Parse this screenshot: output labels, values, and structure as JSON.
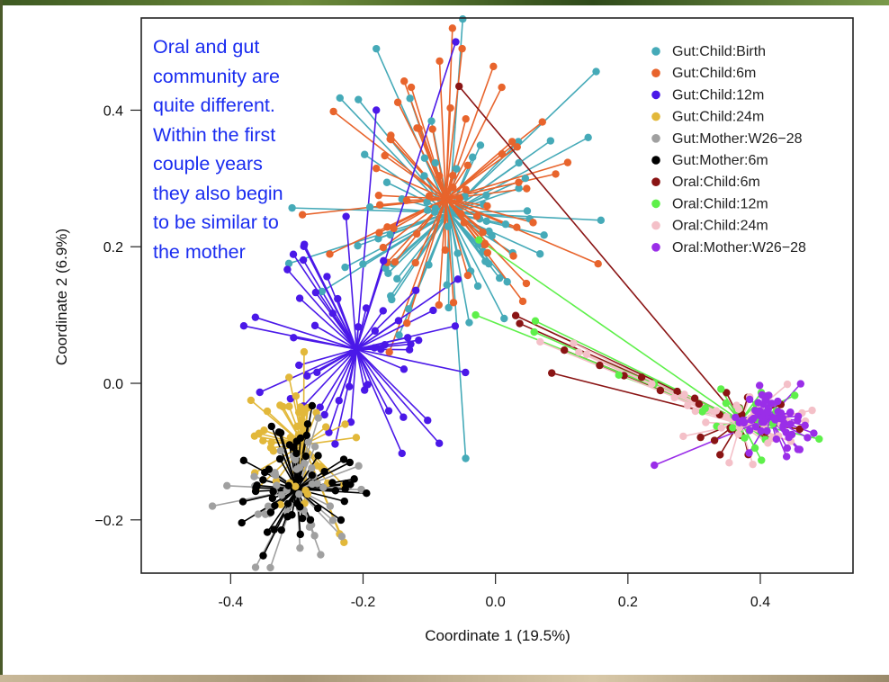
{
  "chart_data": {
    "type": "scatter",
    "subtype": "PCoA spider plot (points connected to group centroids)",
    "xlabel": "Coordinate 1 (19.5%)",
    "ylabel": "Coordinate 2 (6.9%)",
    "xlim": [
      -0.535,
      0.54
    ],
    "ylim": [
      -0.278,
      0.535
    ],
    "xticks": [
      -0.4,
      -0.2,
      0.0,
      0.2,
      0.4
    ],
    "xtick_labels": [
      "-0.4",
      "-0.2",
      "0.0",
      "0.2",
      "0.4"
    ],
    "yticks": [
      -0.2,
      0.0,
      0.2,
      0.4
    ],
    "ytick_labels": [
      "−0.2",
      "0.0",
      "0.2",
      "0.4"
    ],
    "grid": false,
    "legend_position": "top-right",
    "annotation": {
      "lines": [
        "Oral and gut",
        "community are",
        "quite different.",
        "Within the first",
        "couple years",
        "they also begin",
        "to be similar to",
        "the mother"
      ],
      "color": "#1a2cf0",
      "position": "top-left"
    },
    "series": [
      {
        "name": "Gut:Child:Birth",
        "color": "#45aab8",
        "centroid": [
          -0.07,
          0.25
        ],
        "n": 70,
        "spread": [
          0.12,
          0.13
        ],
        "seed": 11
      },
      {
        "name": "Gut:Child:6m",
        "color": "#e8642c",
        "centroid": [
          -0.075,
          0.27
        ],
        "n": 65,
        "spread": [
          0.1,
          0.11
        ],
        "seed": 23
      },
      {
        "name": "Gut:Child:12m",
        "color": "#4a18e8",
        "centroid": [
          -0.21,
          0.05
        ],
        "n": 55,
        "spread": [
          0.09,
          0.1
        ],
        "seed": 37
      },
      {
        "name": "Gut:Child:24m",
        "color": "#e2b83a",
        "centroid": [
          -0.29,
          -0.09
        ],
        "n": 45,
        "spread": [
          0.06,
          0.07
        ],
        "seed": 41
      },
      {
        "name": "Gut:Mother:W26−28",
        "color": "#a0a0a0",
        "centroid": [
          -0.3,
          -0.155
        ],
        "n": 50,
        "spread": [
          0.06,
          0.06
        ],
        "seed": 53
      },
      {
        "name": "Gut:Mother:6m",
        "color": "#000000",
        "centroid": [
          -0.3,
          -0.155
        ],
        "n": 55,
        "spread": [
          0.06,
          0.06
        ],
        "seed": 67
      },
      {
        "name": "Oral:Child:6m",
        "color": "#8a1414",
        "centroid": [
          0.37,
          -0.055
        ],
        "n": 30,
        "spread": [
          0.06,
          0.035
        ],
        "seed": 71
      },
      {
        "name": "Oral:Child:12m",
        "color": "#5ef04a",
        "centroid": [
          0.37,
          -0.055
        ],
        "n": 30,
        "spread": [
          0.06,
          0.035
        ],
        "seed": 83
      },
      {
        "name": "Oral:Child:24m",
        "color": "#f4c0c8",
        "centroid": [
          0.37,
          -0.06
        ],
        "n": 35,
        "spread": [
          0.06,
          0.035
        ],
        "seed": 97
      },
      {
        "name": "Oral:Mother:W26−28",
        "color": "#9a2ee8",
        "centroid": [
          0.415,
          -0.05
        ],
        "n": 55,
        "spread": [
          0.035,
          0.03
        ],
        "seed": 101
      }
    ],
    "notable_points": [
      {
        "series": "Gut:Child:Birth",
        "x": -0.045,
        "y": -0.11
      },
      {
        "series": "Gut:Child:Birth",
        "x": 0.14,
        "y": 0.36
      },
      {
        "series": "Gut:Child:Birth",
        "x": -0.18,
        "y": 0.49
      },
      {
        "series": "Gut:Child:6m",
        "x": -0.065,
        "y": 0.52
      },
      {
        "series": "Gut:Child:6m",
        "x": 0.155,
        "y": 0.175
      },
      {
        "series": "Gut:Child:12m",
        "x": -0.06,
        "y": 0.5
      },
      {
        "series": "Gut:Child:12m",
        "x": -0.18,
        "y": 0.4
      },
      {
        "series": "Gut:Mother:W26−28",
        "x": -0.34,
        "y": -0.27
      },
      {
        "series": "Oral:Child:6m",
        "x": -0.055,
        "y": 0.435
      },
      {
        "series": "Oral:Child:6m",
        "x": 0.085,
        "y": 0.015
      },
      {
        "series": "Oral:Child:12m",
        "x": -0.03,
        "y": 0.1
      },
      {
        "series": "Oral:Child:12m",
        "x": -0.025,
        "y": 0.21
      },
      {
        "series": "Oral:Mother:W26−28",
        "x": 0.24,
        "y": -0.12
      }
    ]
  }
}
